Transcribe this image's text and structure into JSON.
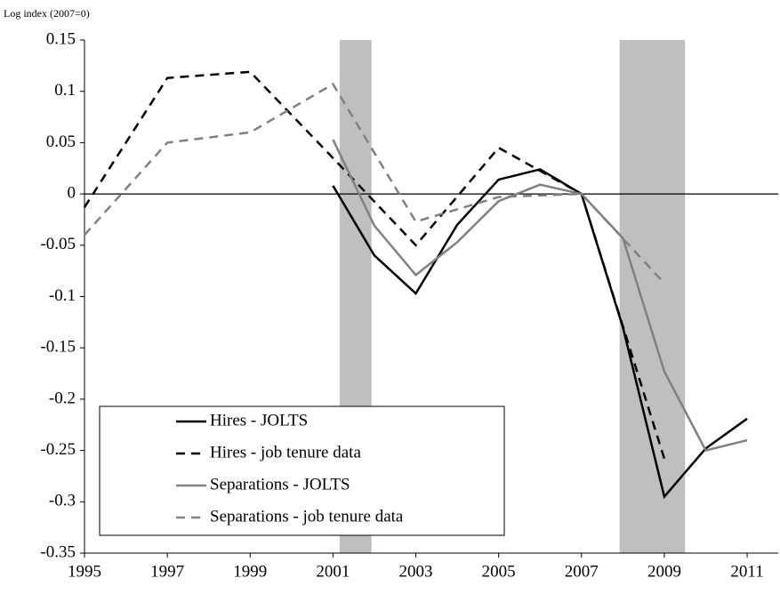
{
  "chart_data": {
    "type": "line",
    "y_axis_label": "Log index (2007=0)",
    "xlim": [
      1995,
      2011.75
    ],
    "xticks": [
      1995,
      1997,
      1999,
      2001,
      2003,
      2005,
      2007,
      2009,
      2011
    ],
    "ylim": [
      -0.35,
      0.15
    ],
    "yticks": [
      -0.35,
      -0.3,
      -0.25,
      -0.2,
      -0.15,
      -0.1,
      -0.05,
      0,
      0.05,
      0.1,
      0.15
    ],
    "shaded_regions": [
      [
        2001.16,
        2001.93
      ],
      [
        2007.92,
        2009.5
      ]
    ],
    "shade_color": "#bfbfbf",
    "zero_line": true,
    "series": [
      {
        "name": "Hires - JOLTS",
        "color": "#000000",
        "dash": false,
        "x": [
          2001,
          2002,
          2003,
          2004,
          2005,
          2006,
          2007,
          2008,
          2009,
          2010,
          2011
        ],
        "values": [
          0.008,
          -0.06,
          -0.097,
          -0.03,
          0.014,
          0.024,
          0,
          -0.13,
          -0.295,
          -0.248,
          -0.219
        ]
      },
      {
        "name": "Hires - job tenure data",
        "color": "#000000",
        "dash": true,
        "x": [
          1995,
          1997,
          1999,
          2001,
          2003,
          2005,
          2007,
          2009
        ],
        "values": [
          -0.013,
          0.113,
          0.119,
          0.035,
          -0.05,
          0.045,
          0,
          -0.258
        ]
      },
      {
        "name": "Separations - JOLTS",
        "color": "#808080",
        "dash": false,
        "x": [
          2001,
          2002,
          2003,
          2004,
          2005,
          2006,
          2007,
          2008,
          2009,
          2010,
          2011
        ],
        "values": [
          0.053,
          -0.031,
          -0.079,
          -0.047,
          -0.007,
          0.009,
          0,
          -0.043,
          -0.173,
          -0.25,
          -0.24
        ]
      },
      {
        "name": "Separations - job tenure data",
        "color": "#808080",
        "dash": true,
        "x": [
          1995,
          1997,
          1999,
          2001,
          2003,
          2005,
          2007,
          2009
        ],
        "values": [
          -0.04,
          0.05,
          0.06,
          0.107,
          -0.027,
          -0.003,
          0,
          -0.087
        ]
      }
    ]
  }
}
